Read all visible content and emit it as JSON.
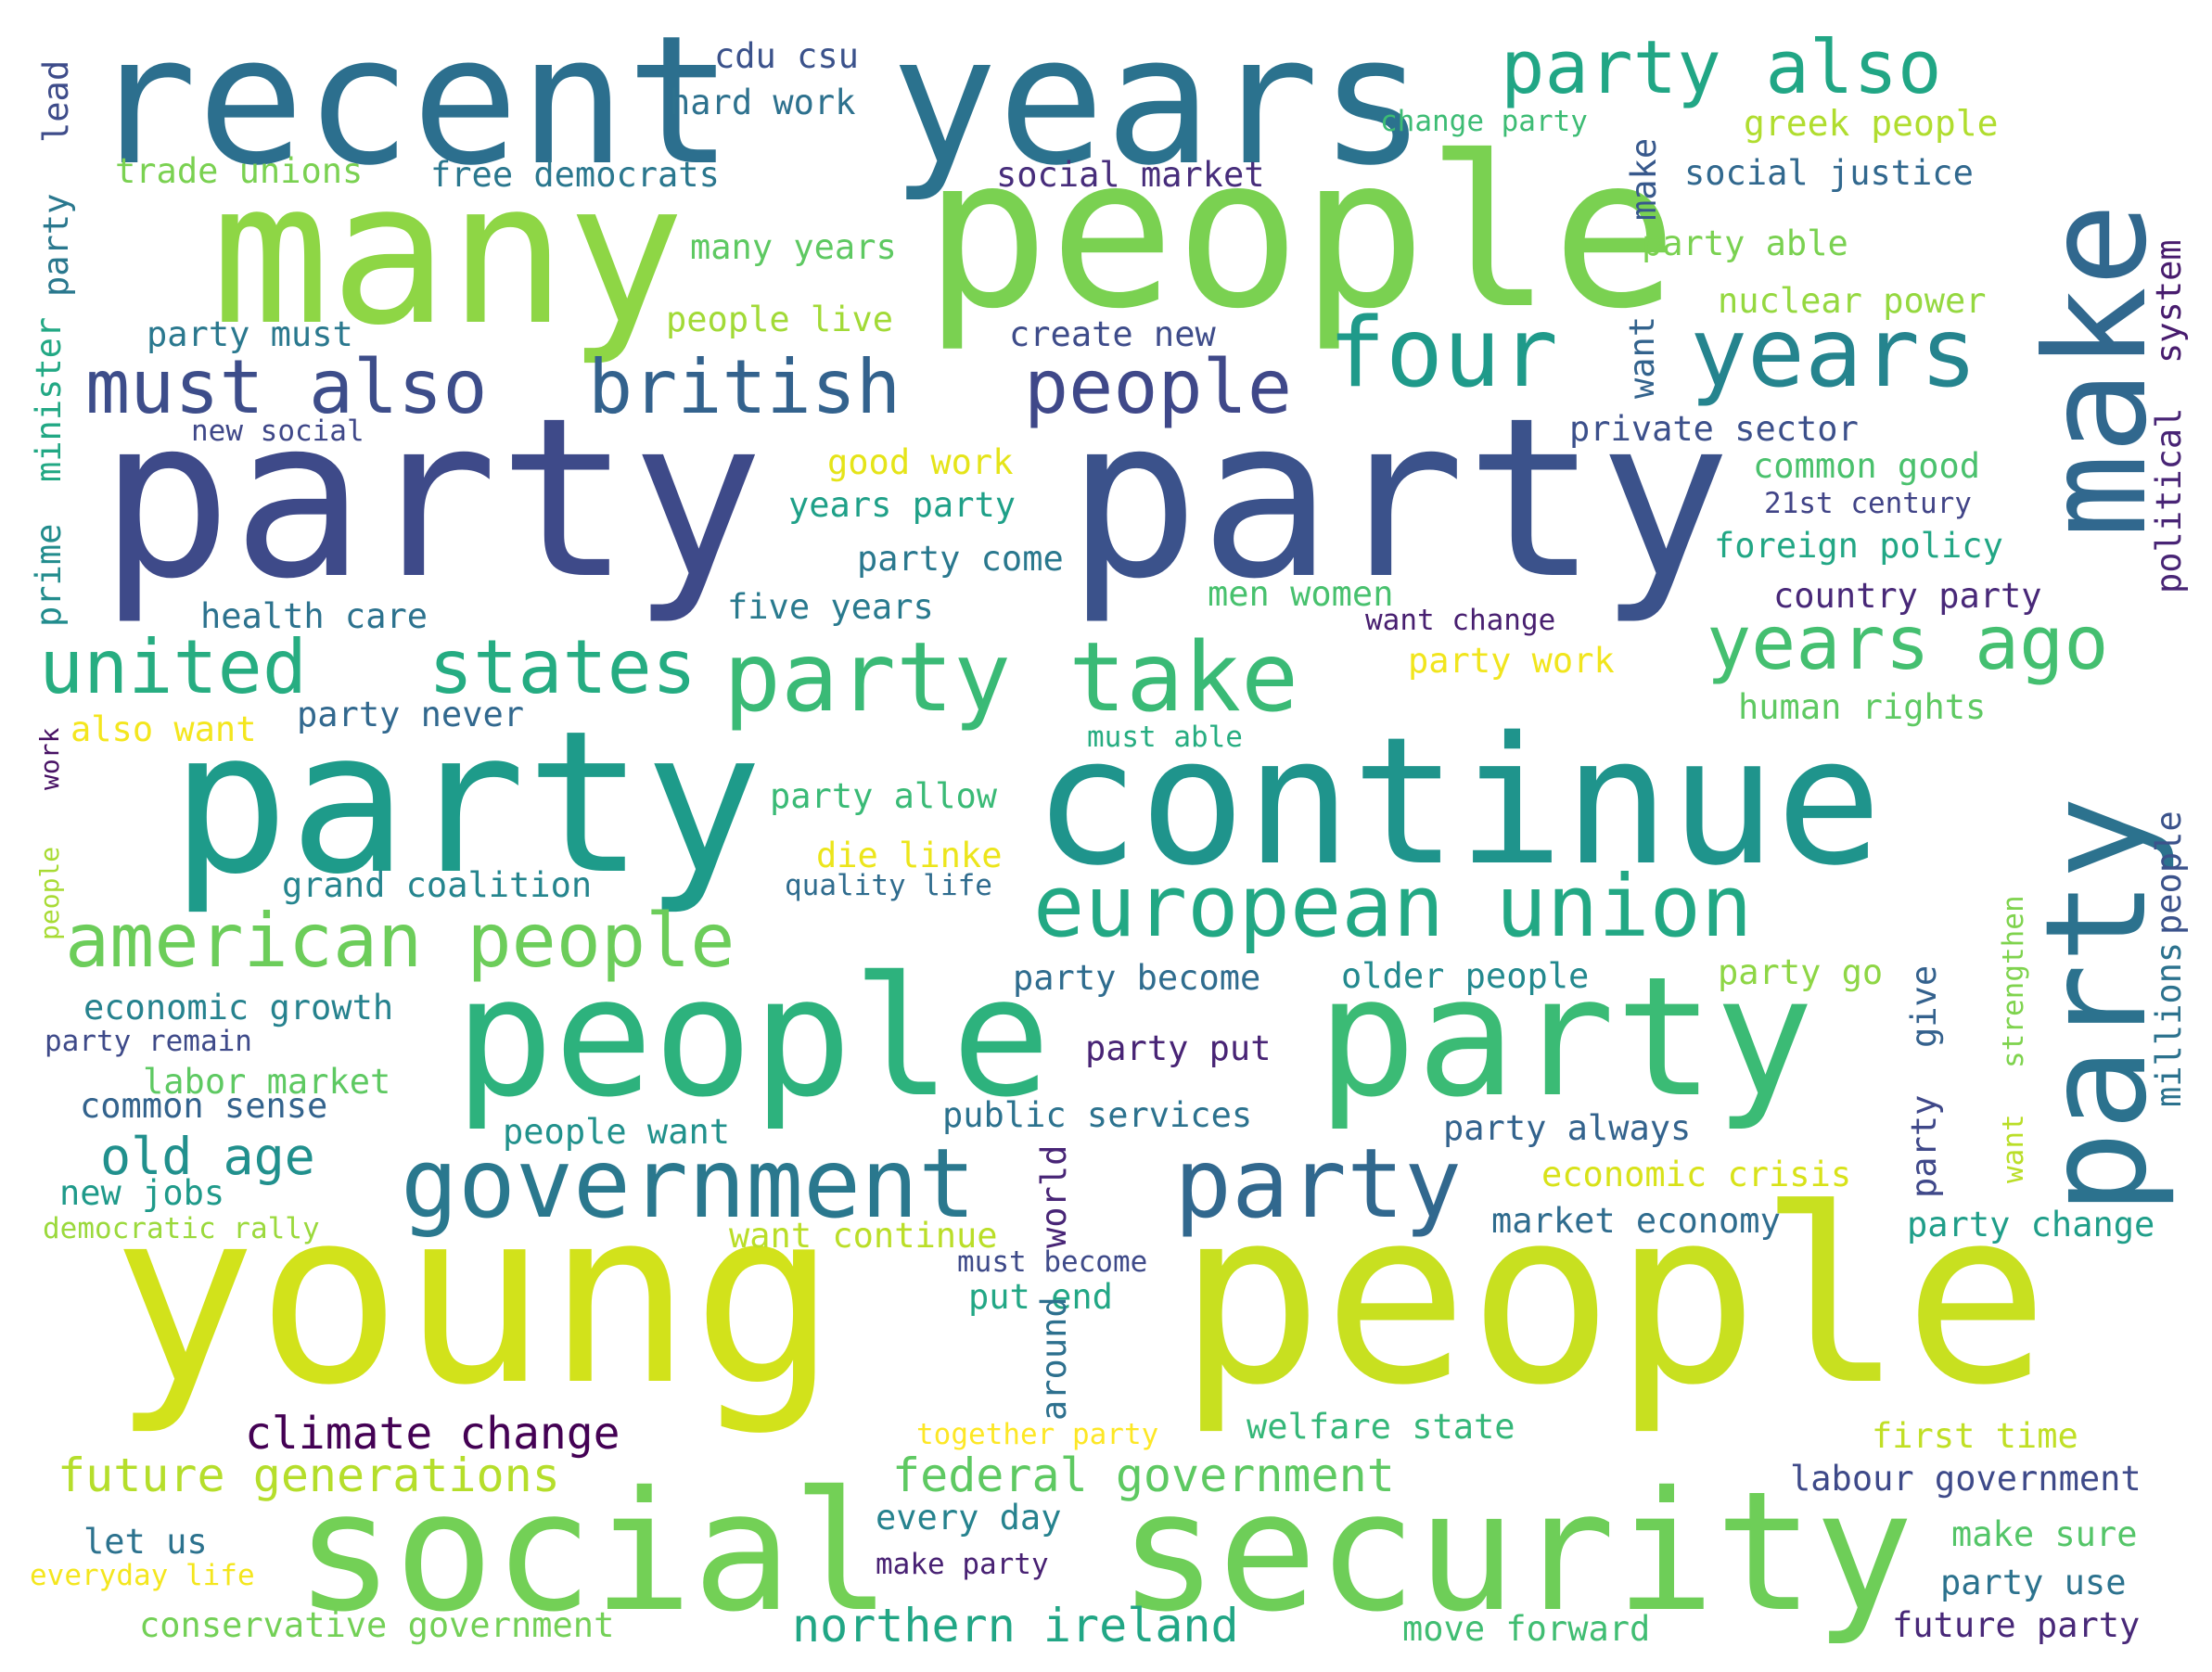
{
  "words": [
    {
      "text": "recent",
      "color": "#2c6f8e"
    },
    {
      "text": "years",
      "color": "#2b728e"
    },
    {
      "text": "party also",
      "color": "#21a685"
    },
    {
      "text": "make",
      "color": "#31688e"
    },
    {
      "text": "many",
      "color": "#8ed645"
    },
    {
      "text": "people",
      "color": "#7ad151"
    },
    {
      "text": "four",
      "color": "#1f9a8a"
    },
    {
      "text": "years",
      "color": "#25848e"
    },
    {
      "text": "must also",
      "color": "#3d4d8a"
    },
    {
      "text": "british",
      "color": "#33628d"
    },
    {
      "text": "people",
      "color": "#3f4889"
    },
    {
      "text": "party",
      "color": "#3e4a89"
    },
    {
      "text": "party",
      "color": "#3b528b"
    },
    {
      "text": "united",
      "color": "#27ad81"
    },
    {
      "text": "states",
      "color": "#25ac82"
    },
    {
      "text": "party take",
      "color": "#3aba76"
    },
    {
      "text": "years ago",
      "color": "#44bf70"
    },
    {
      "text": "party",
      "color": "#1e9b8a"
    },
    {
      "text": "continue",
      "color": "#1f948c"
    },
    {
      "text": "party",
      "color": "#2c728e"
    },
    {
      "text": "european union",
      "color": "#22a884"
    },
    {
      "text": "american people",
      "color": "#6ccd5a"
    },
    {
      "text": "people",
      "color": "#2db27d"
    },
    {
      "text": "party",
      "color": "#3bbb75"
    },
    {
      "text": "government",
      "color": "#2a788e"
    },
    {
      "text": "party",
      "color": "#31688e"
    },
    {
      "text": "young",
      "color": "#d2e21b"
    },
    {
      "text": "people",
      "color": "#c8e020"
    },
    {
      "text": "social",
      "color": "#73d056"
    },
    {
      "text": "security",
      "color": "#6ece58"
    },
    {
      "text": "cdu csu",
      "color": "#3b528b"
    },
    {
      "text": "hard work",
      "color": "#2d718e"
    },
    {
      "text": "change party",
      "color": "#3dbc74"
    },
    {
      "text": "greek people",
      "color": "#b0dd2f"
    },
    {
      "text": "trade unions",
      "color": "#7ad151"
    },
    {
      "text": "free democrats",
      "color": "#2a778e"
    },
    {
      "text": "social market",
      "color": "#472d7b"
    },
    {
      "text": "social justice",
      "color": "#31688e"
    },
    {
      "text": "make",
      "color": "#38598c"
    },
    {
      "text": "many years",
      "color": "#5ec962"
    },
    {
      "text": "party able",
      "color": "#7ad151"
    },
    {
      "text": "people live",
      "color": "#a2da37"
    },
    {
      "text": "nuclear power",
      "color": "#95d840"
    },
    {
      "text": "want",
      "color": "#33638d"
    },
    {
      "text": "party must",
      "color": "#2a788e"
    },
    {
      "text": "create new",
      "color": "#3e4c8a"
    },
    {
      "text": "new social",
      "color": "#3f4889"
    },
    {
      "text": "private sector",
      "color": "#3c508b"
    },
    {
      "text": "good work",
      "color": "#e5e419"
    },
    {
      "text": "common good",
      "color": "#4ac16d"
    },
    {
      "text": "years party",
      "color": "#1fa088"
    },
    {
      "text": "21st century",
      "color": "#414487"
    },
    {
      "text": "party come",
      "color": "#2a788e"
    },
    {
      "text": "foreign policy",
      "color": "#22a785"
    },
    {
      "text": "men women",
      "color": "#48c16e"
    },
    {
      "text": "country party",
      "color": "#482878"
    },
    {
      "text": "health care",
      "color": "#2c728e"
    },
    {
      "text": "five years",
      "color": "#297a8e"
    },
    {
      "text": "want change",
      "color": "#481f70"
    },
    {
      "text": "party work",
      "color": "#f1e51d"
    },
    {
      "text": "human rights",
      "color": "#5ec962"
    },
    {
      "text": "also want",
      "color": "#f4e61e"
    },
    {
      "text": "party never",
      "color": "#31688e"
    },
    {
      "text": "must able",
      "color": "#27ad81"
    },
    {
      "text": "party allow",
      "color": "#3aba76"
    },
    {
      "text": "die linke",
      "color": "#ece51b"
    },
    {
      "text": "grand coalition",
      "color": "#25858e"
    },
    {
      "text": "quality life",
      "color": "#2f6c8e"
    },
    {
      "text": "party become",
      "color": "#2f6c8e"
    },
    {
      "text": "older people",
      "color": "#23898e"
    },
    {
      "text": "party go",
      "color": "#8ed645"
    },
    {
      "text": "economic growth",
      "color": "#26828e"
    },
    {
      "text": "party remain",
      "color": "#3e4a89"
    },
    {
      "text": "labor market",
      "color": "#5ec962"
    },
    {
      "text": "party put",
      "color": "#482475"
    },
    {
      "text": "common sense",
      "color": "#33638d"
    },
    {
      "text": "public services",
      "color": "#2c728e"
    },
    {
      "text": "people want",
      "color": "#21918c"
    },
    {
      "text": "party always",
      "color": "#33638d"
    },
    {
      "text": "old age",
      "color": "#21908d"
    },
    {
      "text": "new jobs",
      "color": "#1f9a8a"
    },
    {
      "text": "economic crisis",
      "color": "#d8e219"
    },
    {
      "text": "democratic rally",
      "color": "#9bd93c"
    },
    {
      "text": "want continue",
      "color": "#bade28"
    },
    {
      "text": "market economy",
      "color": "#2f6c8e"
    },
    {
      "text": "party change",
      "color": "#1f9e89"
    },
    {
      "text": "must become",
      "color": "#3e4a89"
    },
    {
      "text": "put end",
      "color": "#22a785"
    },
    {
      "text": "climate change",
      "color": "#440154"
    },
    {
      "text": "together party",
      "color": "#fde725"
    },
    {
      "text": "welfare state",
      "color": "#35b779"
    },
    {
      "text": "first time",
      "color": "#c0df25"
    },
    {
      "text": "future generations",
      "color": "#b5de2b"
    },
    {
      "text": "federal government",
      "color": "#5ec962"
    },
    {
      "text": "labour government",
      "color": "#3e4a89"
    },
    {
      "text": "let us",
      "color": "#2c728e"
    },
    {
      "text": "every day",
      "color": "#26828e"
    },
    {
      "text": "make party",
      "color": "#482173"
    },
    {
      "text": "make sure",
      "color": "#54c568"
    },
    {
      "text": "everyday life",
      "color": "#f4e61e"
    },
    {
      "text": "party use",
      "color": "#2c728e"
    },
    {
      "text": "conservative government",
      "color": "#73d056"
    },
    {
      "text": "northern ireland",
      "color": "#21a685"
    },
    {
      "text": "move forward",
      "color": "#40bd72"
    },
    {
      "text": "future party",
      "color": "#482878"
    },
    {
      "text": "lead",
      "color": "#3e4c8a"
    },
    {
      "text": "party",
      "color": "#2a788e"
    },
    {
      "text": "minister",
      "color": "#22a884"
    },
    {
      "text": "prime",
      "color": "#228c8d"
    },
    {
      "text": "work",
      "color": "#471164"
    },
    {
      "text": "people",
      "color": "#a8db34"
    },
    {
      "text": "system",
      "color": "#481c6e"
    },
    {
      "text": "political",
      "color": "#482475"
    },
    {
      "text": "people",
      "color": "#3b528b"
    },
    {
      "text": "strengthen",
      "color": "#7fd34e"
    },
    {
      "text": "give",
      "color": "#34618d"
    },
    {
      "text": "millions",
      "color": "#2c728e"
    },
    {
      "text": "party",
      "color": "#3f4889"
    },
    {
      "text": "want",
      "color": "#bade28"
    },
    {
      "text": "world",
      "color": "#482576"
    },
    {
      "text": "around",
      "color": "#2d708e"
    }
  ]
}
